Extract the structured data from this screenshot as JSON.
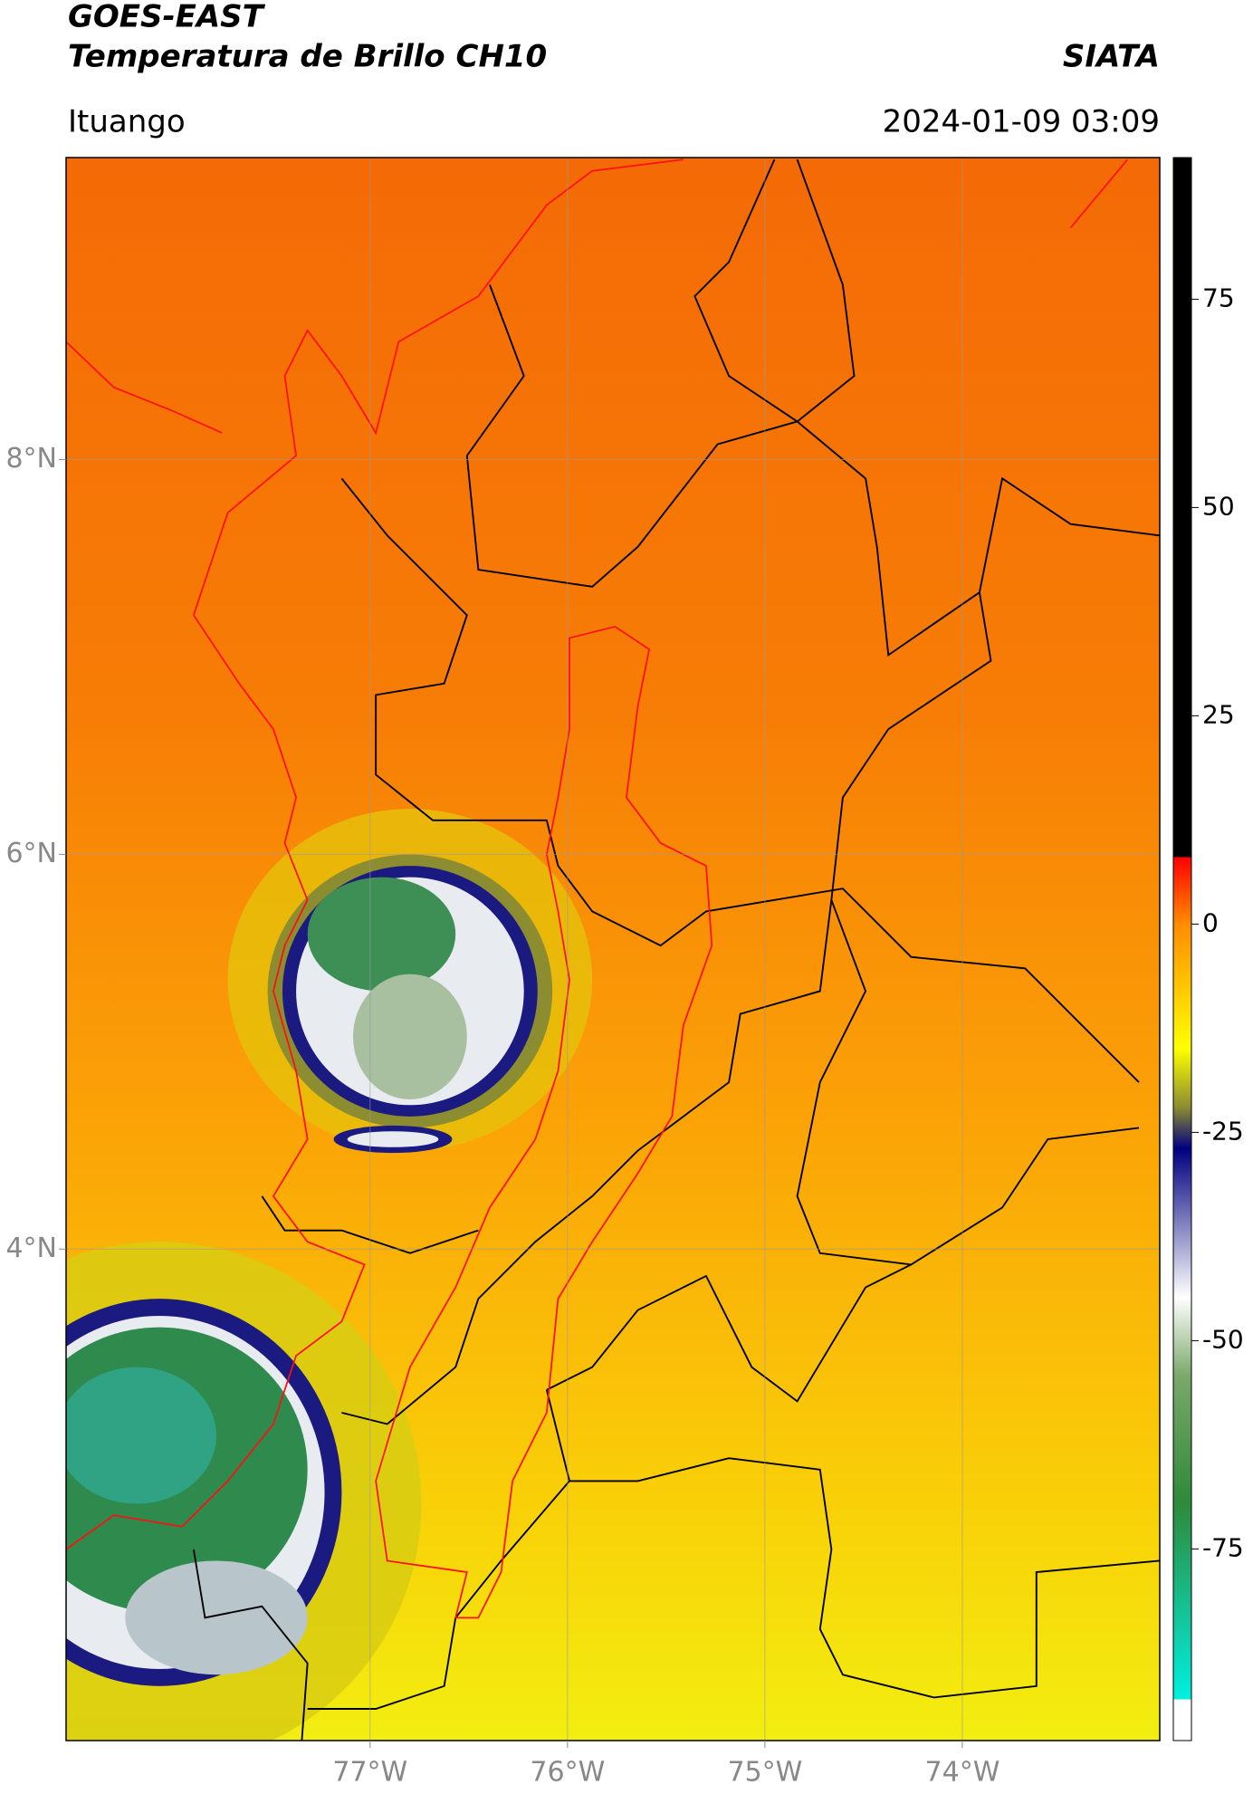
{
  "header": {
    "satellite": "GOES-EAST",
    "product": "Temperatura de Brillo CH10",
    "agency": "SIATA",
    "region": "Ituango",
    "timestamp": "2024-01-09 03:09"
  },
  "map": {
    "xlim": [
      -78.54,
      -73.0
    ],
    "ylim": [
      1.51,
      9.53
    ],
    "xticks": [
      {
        "value": -77,
        "label": "77°W"
      },
      {
        "value": -76,
        "label": "76°W"
      },
      {
        "value": -75,
        "label": "75°W"
      },
      {
        "value": -74,
        "label": "74°W"
      }
    ],
    "yticks": [
      {
        "value": 4,
        "label": "4°N"
      },
      {
        "value": 6,
        "label": "6°N"
      },
      {
        "value": 8,
        "label": "8°N"
      }
    ],
    "grid": true
  },
  "colorbar": {
    "lim": [
      -98,
      92
    ],
    "ticks": [
      -75,
      -50,
      -25,
      0,
      25,
      50,
      75
    ]
  }
}
